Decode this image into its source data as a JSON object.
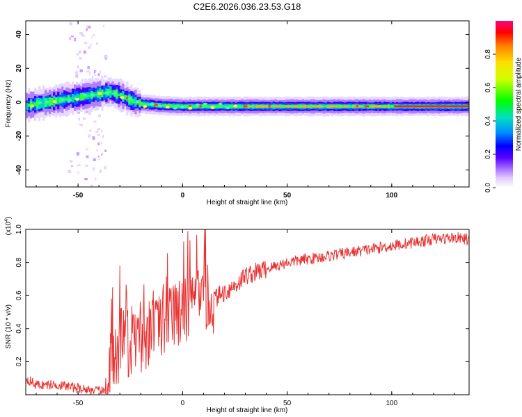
{
  "title": "C2E6.2026.036.23.53.G18",
  "chart_data": [
    {
      "type": "heatmap",
      "xlabel": "Height of straight line (km)",
      "ylabel": "Frequency (Hz)",
      "xlim": [
        -75,
        137
      ],
      "ylim": [
        -50,
        48
      ],
      "xticks": [
        -50,
        0,
        50,
        100
      ],
      "yticks": [
        -40,
        -20,
        0,
        20,
        40
      ],
      "colorbar": {
        "label": "Normalized spectral amplitude",
        "range": [
          0,
          1
        ],
        "ticks": [
          0.0,
          0.2,
          0.4,
          0.6,
          0.8
        ]
      },
      "ridge": {
        "description_points_x": [
          -75,
          -65,
          -55,
          -45,
          -40,
          -35,
          -30,
          -25,
          -20,
          -10,
          0,
          10,
          20,
          40,
          60,
          80,
          100,
          120,
          137
        ],
        "center_freq_y": [
          -2,
          0,
          2,
          4,
          5,
          6,
          4,
          1,
          -1,
          -2,
          -2.5,
          -2.5,
          -2.5,
          -2.5,
          -2.5,
          -2.5,
          -2.5,
          -2.5,
          -2.5
        ]
      }
    },
    {
      "type": "line",
      "xlabel": "Height of straight line (km)",
      "ylabel": "SNR (10 * v/v)",
      "yscale_label": "(x10",
      "yscale_exp": "4",
      "yscale_close": ")",
      "xlim": [
        -75,
        137
      ],
      "ylim": [
        0,
        1.0
      ],
      "xticks": [
        -50,
        0,
        50,
        100
      ],
      "yticks": [
        0.2,
        0.4,
        0.6,
        0.8,
        1.0
      ],
      "series": [
        {
          "color": "#e83232",
          "envelope_x": [
            -75,
            -70,
            -60,
            -50,
            -40,
            -37,
            -35,
            -33,
            -30,
            -25,
            -20,
            -15,
            -10,
            -5,
            0,
            5,
            10,
            15,
            20,
            25,
            30,
            40,
            50,
            60,
            70,
            80,
            90,
            100,
            110,
            120,
            130,
            137
          ],
          "envelope_y": [
            0.1,
            0.06,
            0.06,
            0.04,
            0.02,
            0.02,
            0.1,
            0.22,
            0.3,
            0.32,
            0.34,
            0.38,
            0.4,
            0.44,
            0.5,
            0.52,
            0.56,
            0.58,
            0.62,
            0.66,
            0.72,
            0.76,
            0.8,
            0.82,
            0.84,
            0.86,
            0.88,
            0.9,
            0.92,
            0.94,
            0.95,
            0.94
          ]
        }
      ]
    }
  ]
}
